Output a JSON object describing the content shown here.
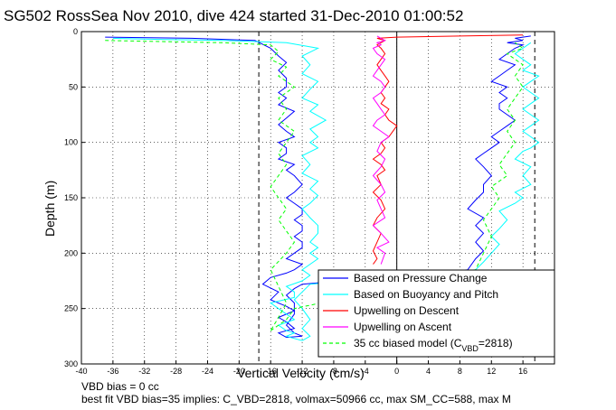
{
  "chart_data": {
    "type": "line",
    "title": "SG502 RossSea Nov 2010, dive 424 started 31-Dec-2010 01:00:52",
    "xlabel": "Vertical Velocity (cm/s)",
    "ylabel": "Depth (m)",
    "xlim": [
      -40,
      20
    ],
    "ylim": [
      300,
      0
    ],
    "y_reversed": true,
    "grid": true,
    "xticks": [
      -40,
      -36,
      -32,
      -28,
      -24,
      -20,
      -16,
      -12,
      -8,
      -4,
      0,
      4,
      8,
      12,
      16
    ],
    "yticks": [
      0,
      50,
      100,
      150,
      200,
      250,
      300
    ],
    "reference_lines": [
      {
        "axis": "x",
        "value": -17.5,
        "style": "dashed",
        "color": "#000000"
      },
      {
        "axis": "x",
        "value": 17.5,
        "style": "dashed",
        "color": "#000000"
      },
      {
        "axis": "x",
        "value": 0,
        "style": "solid",
        "color": "#000000"
      }
    ],
    "legend_position": "bottom-right",
    "series": [
      {
        "name": "Based on Pressure Change",
        "color": "#0000ff",
        "style": "solid",
        "descent": {
          "x": [
            -37,
            -26,
            -18,
            -16,
            -15,
            -14,
            -15,
            -14,
            -14,
            -15,
            -14,
            -15,
            -13,
            -14,
            -15,
            -14,
            -13,
            -15,
            -14,
            -14,
            -15,
            -13,
            -14,
            -13,
            -12,
            -13,
            -14,
            -13,
            -12,
            -12,
            -13,
            -12,
            -12,
            -13,
            -12,
            -12,
            -13,
            -14,
            -12,
            -13,
            -14,
            -16,
            -17,
            -15,
            -16,
            -14,
            -13,
            -15,
            -14,
            -13,
            -15,
            -14
          ],
          "y": [
            5,
            6,
            8,
            15,
            22,
            28,
            35,
            42,
            50,
            55,
            60,
            66,
            72,
            78,
            84,
            90,
            95,
            100,
            105,
            110,
            115,
            120,
            125,
            130,
            138,
            145,
            150,
            155,
            160,
            165,
            170,
            175,
            180,
            185,
            190,
            195,
            200,
            205,
            210,
            215,
            218,
            222,
            228,
            235,
            242,
            248,
            252,
            258,
            262,
            268,
            272,
            276
          ]
        },
        "ascent": {
          "x": [
            -14,
            -12,
            -13,
            -14,
            -13,
            -13,
            -14,
            -13,
            -12,
            9,
            10,
            11,
            10,
            11,
            10,
            11,
            9,
            10,
            11,
            11,
            12,
            11,
            10,
            11,
            12,
            13,
            12,
            13,
            14,
            15,
            14,
            13,
            13,
            14,
            13,
            14,
            12,
            13,
            14,
            15,
            13,
            14,
            15,
            16,
            14,
            16,
            15,
            16,
            17
          ],
          "y": [
            276,
            275,
            272,
            265,
            255,
            245,
            238,
            232,
            228,
            215,
            205,
            198,
            190,
            182,
            175,
            168,
            160,
            152,
            145,
            138,
            130,
            122,
            115,
            110,
            105,
            100,
            95,
            90,
            85,
            80,
            75,
            70,
            65,
            60,
            55,
            50,
            45,
            40,
            35,
            30,
            25,
            20,
            15,
            12,
            10,
            8,
            6,
            5,
            4
          ]
        }
      },
      {
        "name": "Based on Buoyancy and Pitch",
        "color": "#00ffff",
        "style": "solid",
        "descent": {
          "x": [
            -36,
            -30,
            -22,
            -14,
            -10,
            -12,
            -11,
            -12,
            -10,
            -11,
            -12,
            -10,
            -11,
            -9,
            -11,
            -10,
            -11,
            -10,
            -12,
            -11,
            -12,
            -10,
            -11,
            -10,
            -11,
            -12,
            -11,
            -10,
            -10,
            -11,
            -10,
            -11,
            -10,
            -11,
            -12,
            -11,
            -12,
            -14,
            -13,
            -13,
            -16,
            -15,
            -14,
            -13,
            -15,
            -14,
            -13,
            -14,
            -13,
            -12
          ],
          "y": [
            6,
            7,
            8,
            10,
            15,
            22,
            30,
            38,
            45,
            52,
            60,
            66,
            72,
            80,
            88,
            95,
            100,
            105,
            112,
            120,
            128,
            135,
            142,
            148,
            155,
            160,
            168,
            175,
            182,
            190,
            195,
            200,
            205,
            210,
            215,
            220,
            225,
            230,
            235,
            240,
            245,
            250,
            255,
            260,
            265,
            270,
            272,
            275,
            277,
            279
          ]
        },
        "ascent": {
          "x": [
            -12,
            -11,
            -12,
            -11,
            -12,
            -13,
            -12,
            -11,
            10,
            11,
            12,
            13,
            12,
            13,
            14,
            13,
            15,
            16,
            15,
            17,
            16,
            17,
            15,
            16,
            17,
            18,
            17,
            16,
            17,
            18,
            17,
            16,
            17,
            18,
            17,
            16,
            17,
            18,
            16,
            17,
            16,
            15,
            17
          ],
          "y": [
            279,
            275,
            268,
            260,
            250,
            242,
            235,
            228,
            215,
            208,
            200,
            192,
            185,
            178,
            170,
            162,
            155,
            150,
            145,
            138,
            130,
            122,
            115,
            108,
            105,
            100,
            95,
            90,
            85,
            80,
            75,
            70,
            65,
            60,
            55,
            50,
            45,
            40,
            35,
            30,
            25,
            20,
            10
          ]
        }
      },
      {
        "name": "Upwelling on Descent",
        "color": "#ff0000",
        "style": "solid",
        "x": [
          -3,
          -2.5,
          -3,
          -2.5,
          -2,
          -3,
          -2.5,
          -1.5,
          -2,
          -3,
          -2,
          -2.5,
          -1.5,
          -2,
          -3,
          -2,
          -1.5,
          -2,
          -1,
          -0.5,
          0,
          -1,
          -1.5,
          -1,
          -2,
          -1.5,
          -2,
          -1.5,
          -1,
          -1.5,
          -2,
          -2.5,
          -2,
          -1.5,
          -2,
          -2.5,
          -2,
          -1.5,
          -2,
          -2.5,
          0,
          8,
          16
        ],
        "y": [
          210,
          205,
          198,
          190,
          182,
          175,
          168,
          160,
          152,
          145,
          138,
          130,
          125,
          120,
          115,
          110,
          105,
          100,
          95,
          90,
          85,
          80,
          75,
          70,
          65,
          60,
          55,
          50,
          45,
          40,
          35,
          30,
          25,
          20,
          15,
          12,
          10,
          8,
          7,
          6,
          5,
          4,
          3
        ]
      },
      {
        "name": "Upwelling on Ascent",
        "color": "#ff00ff",
        "style": "solid",
        "x": [
          -2,
          -1.5,
          -2.5,
          -1,
          -2,
          -3,
          -1.5,
          -2,
          -2.5,
          -1.5,
          -2,
          -3,
          -2,
          -1.5,
          -2.5,
          -2,
          -1,
          -2,
          -3,
          -2.5,
          -1.5,
          -2,
          -2.5,
          -3,
          -2,
          -1.5,
          -2,
          -3,
          -2.5,
          -2,
          -1.5,
          -2.5,
          -3,
          -2,
          -2.5,
          -1.5,
          -2,
          -2.5
        ],
        "y": [
          210,
          200,
          195,
          190,
          182,
          175,
          168,
          160,
          152,
          145,
          138,
          130,
          122,
          115,
          108,
          100,
          95,
          90,
          85,
          80,
          75,
          70,
          65,
          60,
          55,
          50,
          45,
          40,
          35,
          30,
          25,
          20,
          15,
          12,
          10,
          8,
          6,
          4
        ]
      },
      {
        "name": "35 cc biased model (C",
        "name_subscript": "VBD",
        "name_suffix": "=2818)",
        "color": "#00ff00",
        "style": "dashed",
        "descent": {
          "x": [
            -37,
            -30,
            -22,
            -16,
            -15,
            -16,
            -14,
            -15,
            -13,
            -15,
            -14,
            -15,
            -13,
            -14,
            -15,
            -14,
            -15,
            -16,
            -15,
            -14,
            -15,
            -14,
            -13,
            -14,
            -16,
            -15,
            -14,
            -15,
            -16
          ],
          "y": [
            8,
            9,
            10,
            12,
            18,
            25,
            32,
            40,
            50,
            60,
            70,
            80,
            90,
            100,
            110,
            120,
            130,
            140,
            150,
            160,
            170,
            180,
            190,
            200,
            215,
            230,
            245,
            258,
            270
          ]
        },
        "ascent": {
          "x": [
            -16,
            -14,
            -13,
            10,
            11,
            12,
            11,
            12,
            13,
            12,
            14,
            13,
            14,
            15,
            14,
            15,
            14,
            15,
            16,
            15,
            16,
            14,
            16,
            15
          ],
          "y": [
            270,
            260,
            250,
            215,
            200,
            185,
            170,
            160,
            150,
            140,
            130,
            120,
            110,
            100,
            90,
            80,
            70,
            60,
            50,
            40,
            30,
            20,
            15,
            10
          ]
        }
      }
    ],
    "annotations": [
      "VBD bias = 0 cc",
      "best fit VBD bias=35 implies: C_VBD=2818, volmax=50966 cc, max SM_CC=588, max M"
    ]
  }
}
